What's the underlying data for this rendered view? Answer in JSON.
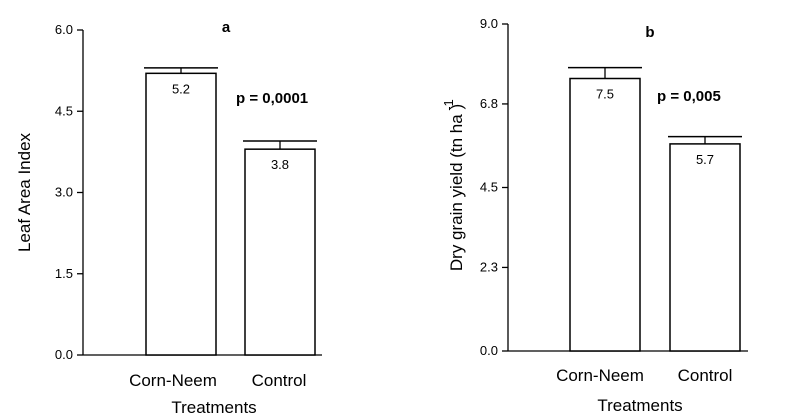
{
  "chart_data": [
    {
      "type": "bar",
      "panel": "a",
      "categories": [
        "Corn-Neem",
        "Control"
      ],
      "values": [
        5.2,
        3.8
      ],
      "errors": [
        0.1,
        0.15
      ],
      "data_labels": [
        "5.2",
        "3.8"
      ],
      "annotation": "p = 0,0001",
      "xlabel": "Treatments",
      "ylabel": "Leaf  Area  Index",
      "ylim": [
        0,
        6.0
      ],
      "yticks": [
        0.0,
        1.5,
        3.0,
        4.5,
        6.0
      ],
      "ytick_labels": [
        "0.0",
        "1.5",
        "3.0",
        "4.5",
        "6.0"
      ],
      "bar_fill": "#ffffff",
      "bar_stroke": "#000000"
    },
    {
      "type": "bar",
      "panel": "b",
      "categories": [
        "Corn-Neem",
        "Control"
      ],
      "values": [
        7.5,
        5.7
      ],
      "errors": [
        0.3,
        0.2
      ],
      "data_labels": [
        "7.5",
        "5.7"
      ],
      "annotation": "p = 0,005",
      "xlabel": "Treatments",
      "ylabel": "Dry  grain  yield  (tn ha  )",
      "ylabel_superscript": "-1",
      "ylim": [
        0,
        9.0
      ],
      "yticks": [
        0.0,
        2.3,
        4.5,
        6.8,
        9.0
      ],
      "ytick_labels": [
        "0.0",
        "2.3",
        "4.5",
        "6.8",
        "9.0"
      ],
      "bar_fill": "#ffffff",
      "bar_stroke": "#000000"
    }
  ]
}
